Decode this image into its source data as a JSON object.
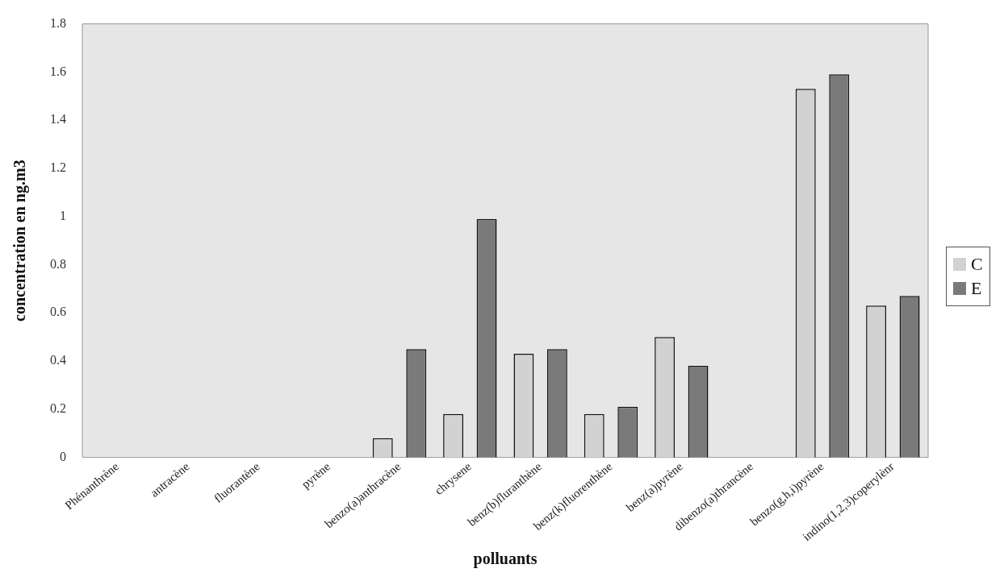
{
  "chart_data": {
    "type": "bar",
    "xlabel": "polluants",
    "ylabel": "concentration en ng.m3",
    "categories": [
      "Phénanthrène",
      "antracène",
      "fluorantène",
      "pyrène",
      "benzo(a)anthracène",
      "chrysene",
      "benz(b)fluranthène",
      "benz(k)fluorenthène",
      "benz(a)pyrène",
      "dibenzo(a)thrancène",
      "benzo(g,h,i)pyrène",
      "indino(1,2,3)coperylènr"
    ],
    "series": [
      {
        "name": "C",
        "color": "#d2d2d2",
        "values": [
          0,
          0,
          0,
          0,
          0.08,
          0.18,
          0.43,
          0.18,
          0.5,
          0,
          1.53,
          0.63
        ]
      },
      {
        "name": "E",
        "color": "#7a7a7a",
        "values": [
          0,
          0,
          0,
          0,
          0.45,
          0.99,
          0.45,
          0.21,
          0.38,
          0,
          1.59,
          0.67
        ]
      }
    ],
    "ylim": [
      0,
      1.8
    ],
    "yticks": [
      0,
      0.2,
      0.4,
      0.6,
      0.8,
      1,
      1.2,
      1.4,
      1.6,
      1.8
    ],
    "grid": false,
    "legend": "right"
  }
}
